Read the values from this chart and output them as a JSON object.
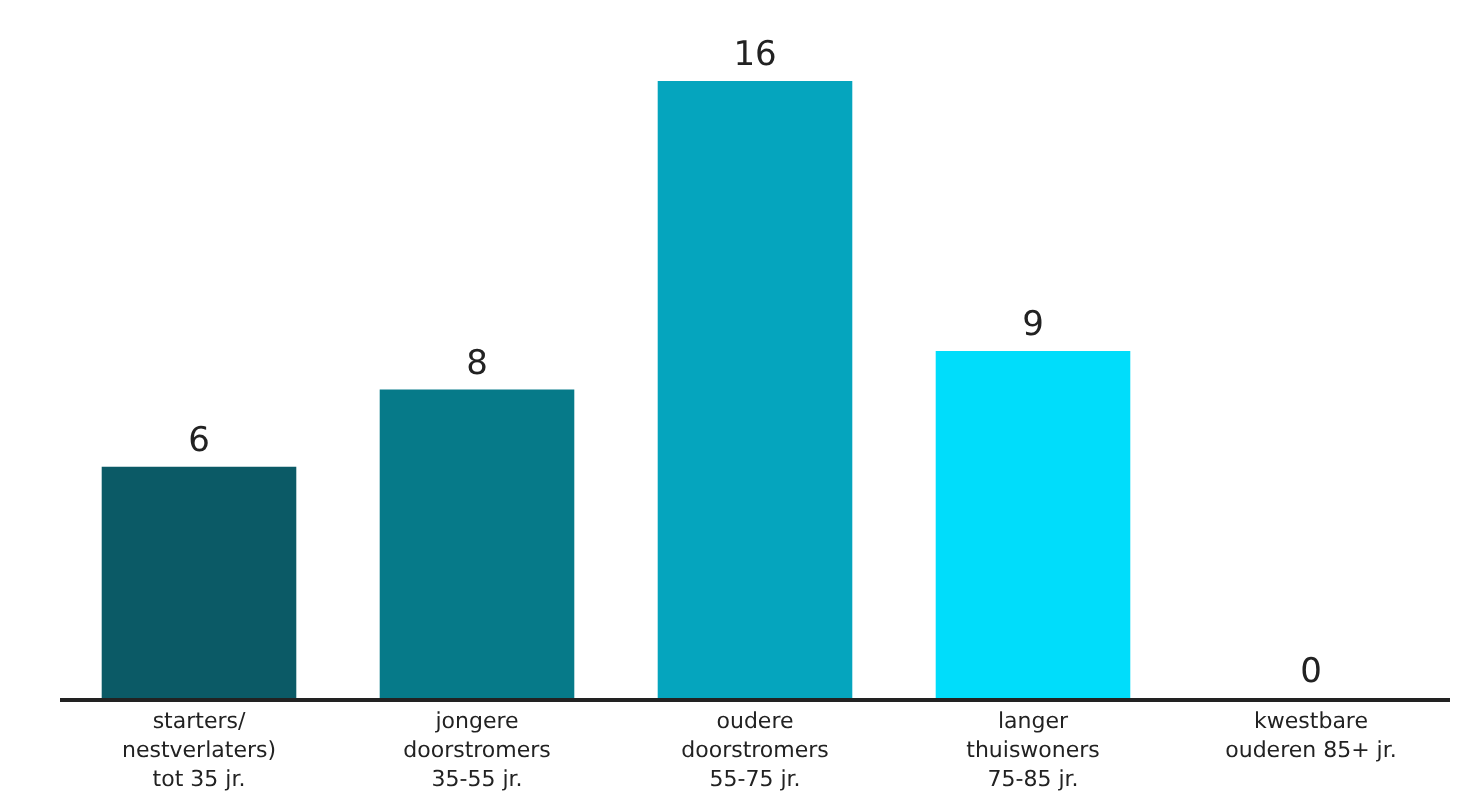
{
  "chart_data": {
    "type": "bar",
    "categories": [
      "starters/\nnestverlaters)\ntot 35 jr.",
      "jongere\ndoorstromers\n35-55 jr.",
      "oudere\ndoorstromers\n55-75 jr.",
      "langer\nthuiswoners\n75-85 jr.",
      "kwestbare\nouderen 85+ jr."
    ],
    "values": [
      6,
      8,
      16,
      9,
      0
    ],
    "colors": [
      "#0b5a66",
      "#067a89",
      "#05a5be",
      "#00ddfb",
      "#00c4d8"
    ],
    "data_labels": true,
    "grid": false,
    "legend": false
  }
}
